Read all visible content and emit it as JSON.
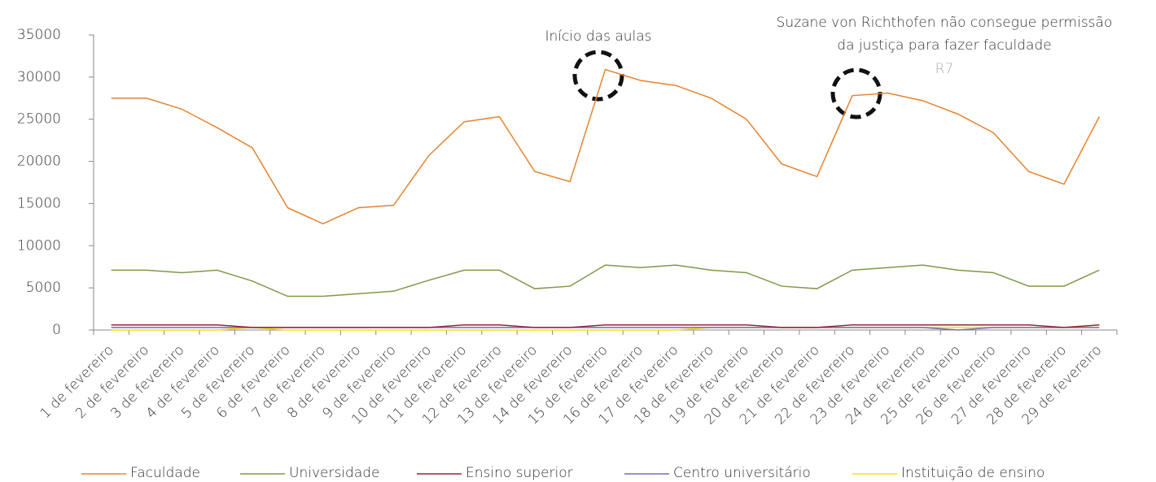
{
  "chart_data": {
    "type": "line",
    "categories": [
      "1 de fevereiro",
      "2 de fevereiro",
      "3 de fevereiro",
      "4 de fevereiro",
      "5 de fevereiro",
      "6 de fevereiro",
      "7 de fevereiro",
      "8 de fevereiro",
      "9 de fevereiro",
      "10 de fevereiro",
      "11 de fevereiro",
      "12 de fevereiro",
      "13 de fevereiro",
      "14 de fevereiro",
      "15 de fevereiro",
      "16 de fevereiro",
      "17 de fevereiro",
      "18 de fevereiro",
      "19 de fevereiro",
      "20 de fevereiro",
      "21 de fevereiro",
      "22 de fevereiro",
      "23 de fevereiro",
      "24 de fevereiro",
      "25 de fevereiro",
      "26 de fevereiro",
      "27 de fevereiro",
      "28 de fevereiro",
      "29 de fevereiro"
    ],
    "series": [
      {
        "name": "Faculdade",
        "color": "#e8832e",
        "values": [
          27500,
          27500,
          26200,
          24000,
          21600,
          14500,
          12600,
          14500,
          14800,
          20700,
          24700,
          25300,
          18800,
          17600,
          30900,
          29600,
          29000,
          27500,
          25000,
          19700,
          18200,
          27800,
          28100,
          27200,
          25600,
          23400,
          18800,
          17300,
          25300
        ]
      },
      {
        "name": "Universidade",
        "color": "#7f9a48",
        "values": [
          7100,
          7100,
          6800,
          7100,
          5800,
          4000,
          4000,
          4300,
          4600,
          5900,
          7100,
          7100,
          4900,
          5200,
          7700,
          7400,
          7700,
          7100,
          6800,
          5200,
          4900,
          7100,
          7400,
          7700,
          7100,
          6800,
          5200,
          5200,
          7100
        ]
      },
      {
        "name": "Ensino superior",
        "color": "#9b2335",
        "values": [
          600,
          600,
          600,
          600,
          300,
          300,
          300,
          300,
          300,
          300,
          600,
          600,
          300,
          300,
          600,
          600,
          600,
          600,
          600,
          300,
          300,
          600,
          600,
          600,
          600,
          600,
          600,
          300,
          600
        ]
      },
      {
        "name": "Centro universitário",
        "color": "#7b68b5",
        "values": [
          300,
          300,
          300,
          300,
          300,
          300,
          300,
          300,
          300,
          300,
          300,
          300,
          300,
          300,
          300,
          300,
          300,
          300,
          300,
          300,
          300,
          300,
          300,
          300,
          0,
          300,
          300,
          300,
          300
        ]
      },
      {
        "name": "Instituição de ensino",
        "color": "#f2e600",
        "values": [
          0,
          0,
          0,
          0,
          300,
          0,
          0,
          0,
          0,
          0,
          0,
          0,
          0,
          0,
          0,
          0,
          0,
          300,
          300,
          300,
          300,
          300,
          300,
          300,
          300,
          300,
          300,
          300,
          600
        ]
      }
    ],
    "annotations": [
      "Início das aulas",
      "Suzane von Richthofen não consegue permissão",
      "da justiça para fazer faculdade",
      "R7"
    ],
    "ylim": [
      0,
      35000
    ],
    "yticks": [
      0,
      5000,
      10000,
      15000,
      20000,
      25000,
      30000,
      35000
    ]
  }
}
